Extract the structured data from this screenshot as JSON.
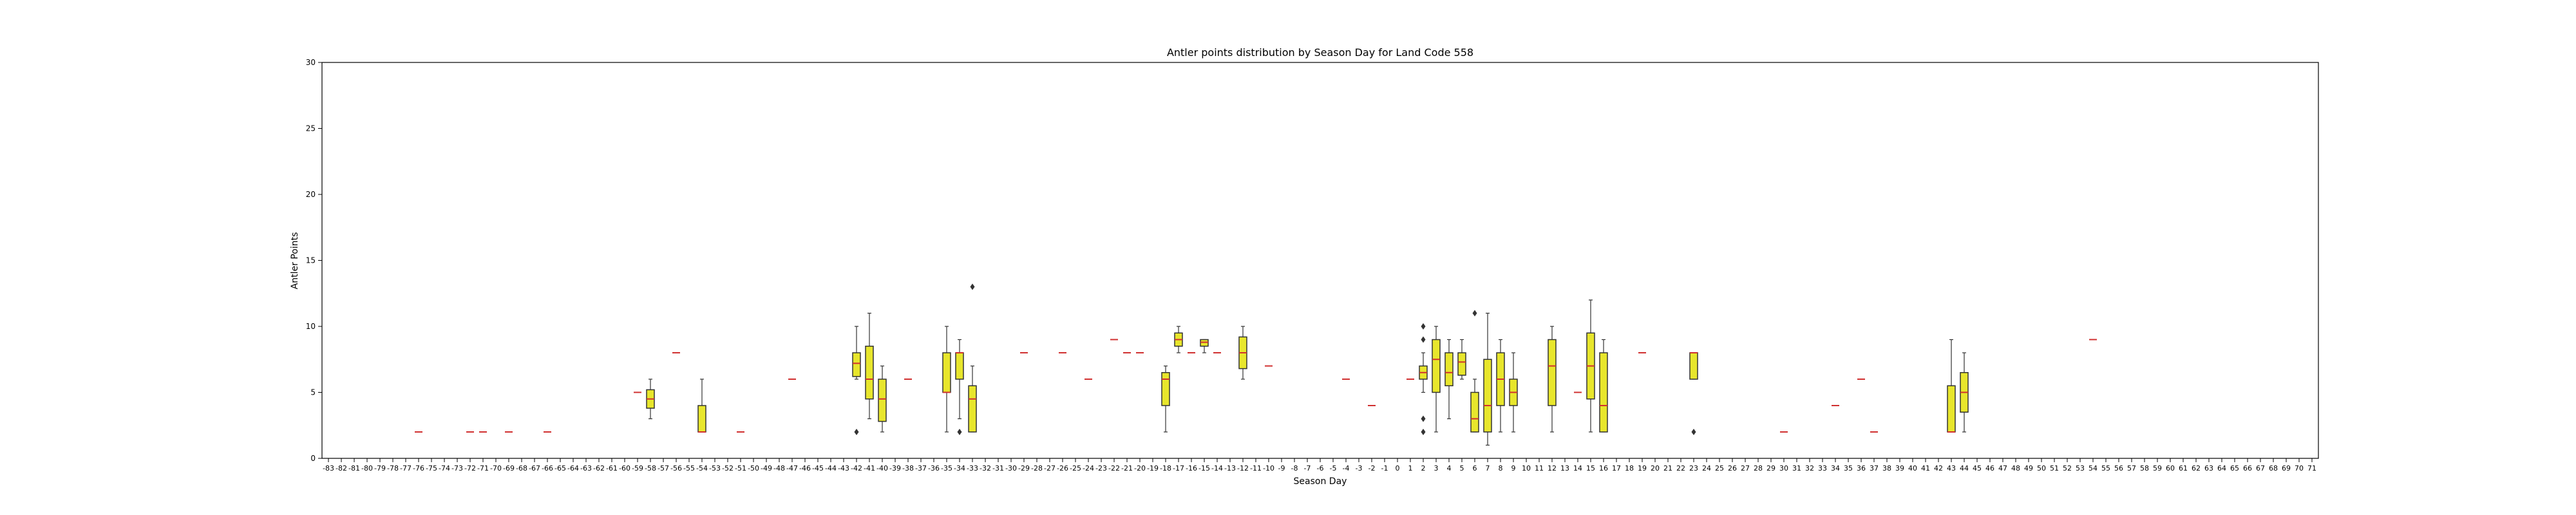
{
  "chart_data": {
    "type": "box",
    "title": "Antler points distribution by Season Day for Land Code 558",
    "xlabel": "Season Day",
    "ylabel": "Antler Points",
    "ylim": [
      0,
      30
    ],
    "yticks": [
      0,
      5,
      10,
      15,
      20,
      25,
      30
    ],
    "x_range": [
      -83,
      71
    ],
    "categories_note": "integer Season Day values from -83 to 71",
    "colors": {
      "box_fill": "#e8e62c",
      "box_edge": "#333333",
      "median": "#d03030",
      "whisker": "#333333",
      "outlier": "#333333"
    },
    "boxes": [
      {
        "x": -76,
        "q1": 2,
        "median": 2,
        "q3": 2,
        "whislo": 2,
        "whishi": 2,
        "fliers": []
      },
      {
        "x": -72,
        "q1": 2,
        "median": 2,
        "q3": 2,
        "whislo": 2,
        "whishi": 2,
        "fliers": []
      },
      {
        "x": -71,
        "q1": 2,
        "median": 2,
        "q3": 2,
        "whislo": 2,
        "whishi": 2,
        "fliers": []
      },
      {
        "x": -69,
        "q1": 2,
        "median": 2,
        "q3": 2,
        "whislo": 2,
        "whishi": 2,
        "fliers": []
      },
      {
        "x": -66,
        "q1": 2,
        "median": 2,
        "q3": 2,
        "whislo": 2,
        "whishi": 2,
        "fliers": []
      },
      {
        "x": -59,
        "q1": 5,
        "median": 5,
        "q3": 5,
        "whislo": 5,
        "whishi": 5,
        "fliers": []
      },
      {
        "x": -58,
        "q1": 3.8,
        "median": 4.5,
        "q3": 5.2,
        "whislo": 3,
        "whishi": 6,
        "fliers": []
      },
      {
        "x": -56,
        "q1": 8,
        "median": 8,
        "q3": 8,
        "whislo": 8,
        "whishi": 8,
        "fliers": []
      },
      {
        "x": -54,
        "q1": 2,
        "median": 2,
        "q3": 4,
        "whislo": 2,
        "whishi": 6,
        "fliers": []
      },
      {
        "x": -51,
        "q1": 2,
        "median": 2,
        "q3": 2,
        "whislo": 2,
        "whishi": 2,
        "fliers": []
      },
      {
        "x": -47,
        "q1": 6,
        "median": 6,
        "q3": 6,
        "whislo": 6,
        "whishi": 6,
        "fliers": []
      },
      {
        "x": -42,
        "q1": 6.2,
        "median": 7.2,
        "q3": 8,
        "whislo": 6,
        "whishi": 10,
        "fliers": [
          2
        ]
      },
      {
        "x": -41,
        "q1": 4.5,
        "median": 6,
        "q3": 8.5,
        "whislo": 3,
        "whishi": 11,
        "fliers": []
      },
      {
        "x": -40,
        "q1": 2.8,
        "median": 4.5,
        "q3": 6,
        "whislo": 2,
        "whishi": 7,
        "fliers": []
      },
      {
        "x": -38,
        "q1": 6,
        "median": 6,
        "q3": 6,
        "whislo": 6,
        "whishi": 6,
        "fliers": []
      },
      {
        "x": -35,
        "q1": 5,
        "median": 5,
        "q3": 8,
        "whislo": 2,
        "whishi": 10,
        "fliers": []
      },
      {
        "x": -34,
        "q1": 6,
        "median": 8,
        "q3": 8,
        "whislo": 3,
        "whishi": 9,
        "fliers": [
          2
        ]
      },
      {
        "x": -33,
        "q1": 2,
        "median": 4.5,
        "q3": 5.5,
        "whislo": 2,
        "whishi": 7,
        "fliers": [
          13
        ]
      },
      {
        "x": -29,
        "q1": 8,
        "median": 8,
        "q3": 8,
        "whislo": 8,
        "whishi": 8,
        "fliers": []
      },
      {
        "x": -26,
        "q1": 8,
        "median": 8,
        "q3": 8,
        "whislo": 8,
        "whishi": 8,
        "fliers": []
      },
      {
        "x": -24,
        "q1": 6,
        "median": 6,
        "q3": 6,
        "whislo": 6,
        "whishi": 6,
        "fliers": []
      },
      {
        "x": -22,
        "q1": 9,
        "median": 9,
        "q3": 9,
        "whislo": 9,
        "whishi": 9,
        "fliers": []
      },
      {
        "x": -21,
        "q1": 8,
        "median": 8,
        "q3": 8,
        "whislo": 8,
        "whishi": 8,
        "fliers": []
      },
      {
        "x": -20,
        "q1": 8,
        "median": 8,
        "q3": 8,
        "whislo": 8,
        "whishi": 8,
        "fliers": []
      },
      {
        "x": -18,
        "q1": 4,
        "median": 6,
        "q3": 6.5,
        "whislo": 2,
        "whishi": 7,
        "fliers": []
      },
      {
        "x": -17,
        "q1": 8.5,
        "median": 9,
        "q3": 9.5,
        "whislo": 8,
        "whishi": 10,
        "fliers": []
      },
      {
        "x": -16,
        "q1": 8,
        "median": 8,
        "q3": 8,
        "whislo": 8,
        "whishi": 8,
        "fliers": []
      },
      {
        "x": -15,
        "q1": 8.5,
        "median": 8.8,
        "q3": 9,
        "whislo": 8,
        "whishi": 9,
        "fliers": []
      },
      {
        "x": -14,
        "q1": 8,
        "median": 8,
        "q3": 8,
        "whislo": 8,
        "whishi": 8,
        "fliers": []
      },
      {
        "x": -12,
        "q1": 6.8,
        "median": 8,
        "q3": 9.2,
        "whislo": 6,
        "whishi": 10,
        "fliers": []
      },
      {
        "x": -10,
        "q1": 7,
        "median": 7,
        "q3": 7,
        "whislo": 7,
        "whishi": 7,
        "fliers": []
      },
      {
        "x": -4,
        "q1": 6,
        "median": 6,
        "q3": 6,
        "whislo": 6,
        "whishi": 6,
        "fliers": []
      },
      {
        "x": -2,
        "q1": 4,
        "median": 4,
        "q3": 4,
        "whislo": 4,
        "whishi": 4,
        "fliers": []
      },
      {
        "x": 1,
        "q1": 6,
        "median": 6,
        "q3": 6,
        "whislo": 6,
        "whishi": 6,
        "fliers": []
      },
      {
        "x": 2,
        "q1": 6,
        "median": 6.5,
        "q3": 7,
        "whislo": 5,
        "whishi": 8,
        "fliers": [
          10,
          9,
          3,
          2
        ]
      },
      {
        "x": 3,
        "q1": 5,
        "median": 7.5,
        "q3": 9,
        "whislo": 2,
        "whishi": 10,
        "fliers": []
      },
      {
        "x": 4,
        "q1": 5.5,
        "median": 6.5,
        "q3": 8,
        "whislo": 3,
        "whishi": 9,
        "fliers": []
      },
      {
        "x": 5,
        "q1": 6.3,
        "median": 7.3,
        "q3": 8,
        "whislo": 6,
        "whishi": 9,
        "fliers": []
      },
      {
        "x": 6,
        "q1": 2,
        "median": 3,
        "q3": 5,
        "whislo": 2,
        "whishi": 6,
        "fliers": [
          11
        ]
      },
      {
        "x": 7,
        "q1": 2,
        "median": 4,
        "q3": 7.5,
        "whislo": 1,
        "whishi": 11,
        "fliers": []
      },
      {
        "x": 8,
        "q1": 4,
        "median": 6,
        "q3": 8,
        "whislo": 2,
        "whishi": 9,
        "fliers": []
      },
      {
        "x": 9,
        "q1": 4,
        "median": 5,
        "q3": 6,
        "whislo": 2,
        "whishi": 8,
        "fliers": []
      },
      {
        "x": 12,
        "q1": 4,
        "median": 7,
        "q3": 9,
        "whislo": 2,
        "whishi": 10,
        "fliers": []
      },
      {
        "x": 14,
        "q1": 5,
        "median": 5,
        "q3": 5,
        "whislo": 5,
        "whishi": 5,
        "fliers": []
      },
      {
        "x": 15,
        "q1": 4.5,
        "median": 7,
        "q3": 9.5,
        "whislo": 2,
        "whishi": 12,
        "fliers": []
      },
      {
        "x": 16,
        "q1": 2,
        "median": 4,
        "q3": 8,
        "whislo": 2,
        "whishi": 9,
        "fliers": []
      },
      {
        "x": 19,
        "q1": 8,
        "median": 8,
        "q3": 8,
        "whislo": 8,
        "whishi": 8,
        "fliers": []
      },
      {
        "x": 23,
        "q1": 6,
        "median": 8,
        "q3": 8,
        "whislo": 6,
        "whishi": 8,
        "fliers": [
          2
        ]
      },
      {
        "x": 30,
        "q1": 2,
        "median": 2,
        "q3": 2,
        "whislo": 2,
        "whishi": 2,
        "fliers": []
      },
      {
        "x": 34,
        "q1": 4,
        "median": 4,
        "q3": 4,
        "whislo": 4,
        "whishi": 4,
        "fliers": []
      },
      {
        "x": 36,
        "q1": 6,
        "median": 6,
        "q3": 6,
        "whislo": 6,
        "whishi": 6,
        "fliers": []
      },
      {
        "x": 37,
        "q1": 2,
        "median": 2,
        "q3": 2,
        "whislo": 2,
        "whishi": 2,
        "fliers": []
      },
      {
        "x": 43,
        "q1": 2,
        "median": 2,
        "q3": 5.5,
        "whislo": 2,
        "whishi": 9,
        "fliers": []
      },
      {
        "x": 44,
        "q1": 3.5,
        "median": 5,
        "q3": 6.5,
        "whislo": 2,
        "whishi": 8,
        "fliers": []
      },
      {
        "x": 54,
        "q1": 9,
        "median": 9,
        "q3": 9,
        "whislo": 9,
        "whishi": 9,
        "fliers": []
      }
    ]
  }
}
